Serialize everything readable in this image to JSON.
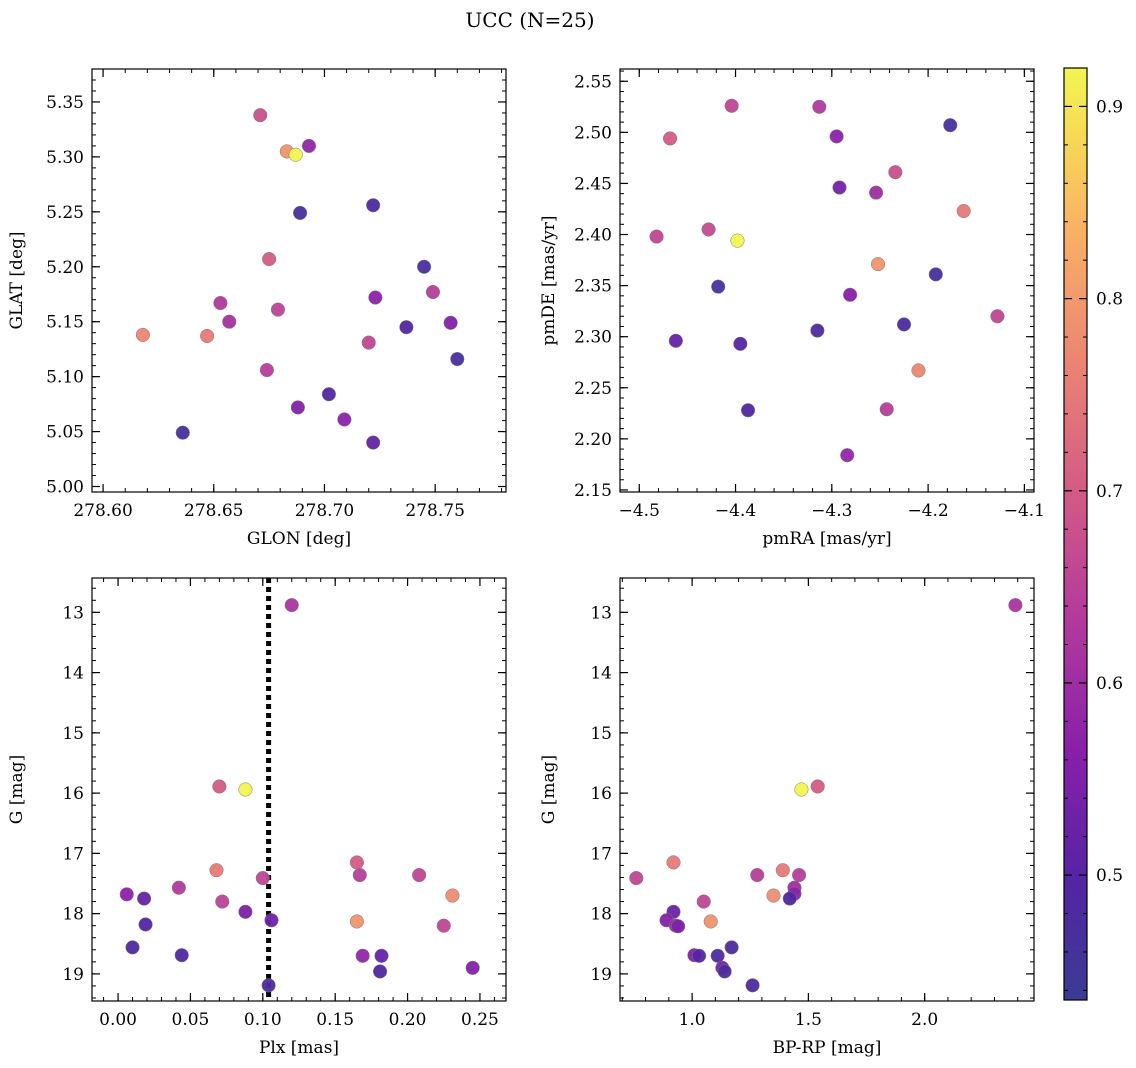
{
  "figure": {
    "title": "UCC (N=25)"
  },
  "colormap": {
    "name": "plasma",
    "range": [
      0.435,
      0.92
    ],
    "ticks": [
      0.5,
      0.6,
      0.7,
      0.8,
      0.9
    ],
    "tick_labels": [
      "0.5",
      "0.6",
      "0.7",
      "0.8",
      "0.9"
    ]
  },
  "chart_data": [
    {
      "type": "scatter",
      "id": "spatial",
      "xlabel": "GLON [deg]",
      "ylabel": "GLAT [deg]",
      "xlim": [
        278.595,
        278.782
      ],
      "ylim": [
        4.995,
        5.38
      ],
      "xticks": [
        278.6,
        278.65,
        278.7,
        278.75
      ],
      "xtick_labels": [
        "278.60",
        "278.65",
        "278.70",
        "278.75"
      ],
      "yticks": [
        5.0,
        5.05,
        5.1,
        5.15,
        5.2,
        5.25,
        5.3,
        5.35
      ],
      "ytick_labels": [
        "5.00",
        "5.05",
        "5.10",
        "5.15",
        "5.20",
        "5.25",
        "5.30",
        "5.35"
      ],
      "points": [
        {
          "x": 278.671,
          "y": 5.338,
          "c": 0.68
        },
        {
          "x": 278.683,
          "y": 5.305,
          "c": 0.79
        },
        {
          "x": 278.687,
          "y": 5.302,
          "c": 0.92
        },
        {
          "x": 278.693,
          "y": 5.31,
          "c": 0.58
        },
        {
          "x": 278.689,
          "y": 5.249,
          "c": 0.47
        },
        {
          "x": 278.722,
          "y": 5.256,
          "c": 0.48
        },
        {
          "x": 278.675,
          "y": 5.207,
          "c": 0.7
        },
        {
          "x": 278.745,
          "y": 5.2,
          "c": 0.47
        },
        {
          "x": 278.653,
          "y": 5.167,
          "c": 0.63
        },
        {
          "x": 278.749,
          "y": 5.177,
          "c": 0.64
        },
        {
          "x": 278.679,
          "y": 5.161,
          "c": 0.65
        },
        {
          "x": 278.723,
          "y": 5.172,
          "c": 0.57
        },
        {
          "x": 278.657,
          "y": 5.15,
          "c": 0.61
        },
        {
          "x": 278.618,
          "y": 5.138,
          "c": 0.77
        },
        {
          "x": 278.647,
          "y": 5.137,
          "c": 0.75
        },
        {
          "x": 278.737,
          "y": 5.145,
          "c": 0.49
        },
        {
          "x": 278.757,
          "y": 5.149,
          "c": 0.56
        },
        {
          "x": 278.72,
          "y": 5.131,
          "c": 0.66
        },
        {
          "x": 278.76,
          "y": 5.116,
          "c": 0.47
        },
        {
          "x": 278.674,
          "y": 5.106,
          "c": 0.64
        },
        {
          "x": 278.702,
          "y": 5.084,
          "c": 0.49
        },
        {
          "x": 278.688,
          "y": 5.072,
          "c": 0.56
        },
        {
          "x": 278.709,
          "y": 5.061,
          "c": 0.57
        },
        {
          "x": 278.722,
          "y": 5.04,
          "c": 0.52
        },
        {
          "x": 278.636,
          "y": 5.049,
          "c": 0.47
        }
      ]
    },
    {
      "type": "scatter",
      "id": "proper-motion",
      "xlabel": "pmRA [mas/yr]",
      "ylabel": "pmDE [mas/yr]",
      "xlim": [
        -4.52,
        -4.09
      ],
      "ylim": [
        2.148,
        2.562
      ],
      "xticks": [
        -4.5,
        -4.4,
        -4.3,
        -4.2,
        -4.1
      ],
      "xtick_labels": [
        "−4.5",
        "−4.4",
        "−4.3",
        "−4.2",
        "−4.1"
      ],
      "yticks": [
        2.15,
        2.2,
        2.25,
        2.3,
        2.35,
        2.4,
        2.45,
        2.5,
        2.55
      ],
      "ytick_labels": [
        "2.15",
        "2.20",
        "2.25",
        "2.30",
        "2.35",
        "2.40",
        "2.45",
        "2.50",
        "2.55"
      ],
      "points": [
        {
          "x": -4.404,
          "y": 2.526,
          "c": 0.66
        },
        {
          "x": -4.313,
          "y": 2.525,
          "c": 0.63
        },
        {
          "x": -4.468,
          "y": 2.494,
          "c": 0.7
        },
        {
          "x": -4.295,
          "y": 2.496,
          "c": 0.57
        },
        {
          "x": -4.177,
          "y": 2.507,
          "c": 0.47
        },
        {
          "x": -4.234,
          "y": 2.461,
          "c": 0.68
        },
        {
          "x": -4.292,
          "y": 2.446,
          "c": 0.54
        },
        {
          "x": -4.254,
          "y": 2.441,
          "c": 0.6
        },
        {
          "x": -4.163,
          "y": 2.423,
          "c": 0.75
        },
        {
          "x": -4.482,
          "y": 2.398,
          "c": 0.66
        },
        {
          "x": -4.428,
          "y": 2.405,
          "c": 0.67
        },
        {
          "x": -4.398,
          "y": 2.394,
          "c": 0.92
        },
        {
          "x": -4.252,
          "y": 2.371,
          "c": 0.79
        },
        {
          "x": -4.192,
          "y": 2.361,
          "c": 0.47
        },
        {
          "x": -4.418,
          "y": 2.349,
          "c": 0.47
        },
        {
          "x": -4.281,
          "y": 2.341,
          "c": 0.56
        },
        {
          "x": -4.225,
          "y": 2.312,
          "c": 0.48
        },
        {
          "x": -4.128,
          "y": 2.32,
          "c": 0.66
        },
        {
          "x": -4.315,
          "y": 2.306,
          "c": 0.48
        },
        {
          "x": -4.462,
          "y": 2.296,
          "c": 0.52
        },
        {
          "x": -4.395,
          "y": 2.293,
          "c": 0.5
        },
        {
          "x": -4.21,
          "y": 2.267,
          "c": 0.77
        },
        {
          "x": -4.387,
          "y": 2.228,
          "c": 0.49
        },
        {
          "x": -4.243,
          "y": 2.229,
          "c": 0.64
        },
        {
          "x": -4.284,
          "y": 2.184,
          "c": 0.58
        }
      ]
    },
    {
      "type": "scatter",
      "id": "plx-mag",
      "xlabel": "Plx [mas]",
      "ylabel": "G [mag]",
      "xlim": [
        -0.018,
        0.268
      ],
      "ylim": [
        19.45,
        12.43
      ],
      "xticks": [
        0.0,
        0.05,
        0.1,
        0.15,
        0.2,
        0.25
      ],
      "xtick_labels": [
        "0.00",
        "0.05",
        "0.10",
        "0.15",
        "0.20",
        "0.25"
      ],
      "yticks": [
        13,
        14,
        15,
        16,
        17,
        18,
        19
      ],
      "ytick_labels": [
        "13",
        "14",
        "15",
        "16",
        "17",
        "18",
        "19"
      ],
      "vline": 0.104,
      "points": [
        {
          "x": 0.12,
          "y": 12.88,
          "c": 0.62
        },
        {
          "x": 0.07,
          "y": 15.89,
          "c": 0.7
        },
        {
          "x": 0.088,
          "y": 15.94,
          "c": 0.92
        },
        {
          "x": 0.068,
          "y": 17.28,
          "c": 0.75
        },
        {
          "x": 0.1,
          "y": 17.41,
          "c": 0.66
        },
        {
          "x": 0.165,
          "y": 17.15,
          "c": 0.7
        },
        {
          "x": 0.167,
          "y": 17.36,
          "c": 0.64
        },
        {
          "x": 0.208,
          "y": 17.36,
          "c": 0.66
        },
        {
          "x": 0.231,
          "y": 17.7,
          "c": 0.78
        },
        {
          "x": 0.042,
          "y": 17.57,
          "c": 0.63
        },
        {
          "x": 0.006,
          "y": 17.68,
          "c": 0.57
        },
        {
          "x": 0.018,
          "y": 17.75,
          "c": 0.52
        },
        {
          "x": 0.072,
          "y": 17.8,
          "c": 0.65
        },
        {
          "x": 0.088,
          "y": 17.97,
          "c": 0.55
        },
        {
          "x": 0.106,
          "y": 18.11,
          "c": 0.53
        },
        {
          "x": 0.165,
          "y": 18.13,
          "c": 0.79
        },
        {
          "x": 0.019,
          "y": 18.18,
          "c": 0.49
        },
        {
          "x": 0.225,
          "y": 18.2,
          "c": 0.66
        },
        {
          "x": 0.01,
          "y": 18.56,
          "c": 0.48
        },
        {
          "x": 0.044,
          "y": 18.69,
          "c": 0.49
        },
        {
          "x": 0.169,
          "y": 18.7,
          "c": 0.58
        },
        {
          "x": 0.182,
          "y": 18.7,
          "c": 0.52
        },
        {
          "x": 0.245,
          "y": 18.9,
          "c": 0.56
        },
        {
          "x": 0.181,
          "y": 18.96,
          "c": 0.49
        },
        {
          "x": 0.104,
          "y": 19.19,
          "c": 0.48
        }
      ]
    },
    {
      "type": "scatter",
      "id": "cmd",
      "xlabel": "BP-RP [mag]",
      "ylabel": "G [mag]",
      "xlim": [
        0.69,
        2.47
      ],
      "ylim": [
        19.45,
        12.43
      ],
      "xticks": [
        1.0,
        1.5,
        2.0
      ],
      "xtick_labels": [
        "1.0",
        "1.5",
        "2.0"
      ],
      "yticks": [
        13,
        14,
        15,
        16,
        17,
        18,
        19
      ],
      "ytick_labels": [
        "13",
        "14",
        "15",
        "16",
        "17",
        "18",
        "19"
      ],
      "points": [
        {
          "x": 2.39,
          "y": 12.88,
          "c": 0.62
        },
        {
          "x": 1.54,
          "y": 15.89,
          "c": 0.7
        },
        {
          "x": 1.47,
          "y": 15.94,
          "c": 0.92
        },
        {
          "x": 0.92,
          "y": 17.15,
          "c": 0.75
        },
        {
          "x": 0.76,
          "y": 17.41,
          "c": 0.66
        },
        {
          "x": 1.28,
          "y": 17.36,
          "c": 0.64
        },
        {
          "x": 1.39,
          "y": 17.28,
          "c": 0.75
        },
        {
          "x": 1.46,
          "y": 17.36,
          "c": 0.64
        },
        {
          "x": 1.35,
          "y": 17.7,
          "c": 0.78
        },
        {
          "x": 1.44,
          "y": 17.57,
          "c": 0.6
        },
        {
          "x": 1.44,
          "y": 17.67,
          "c": 0.57
        },
        {
          "x": 1.42,
          "y": 17.75,
          "c": 0.49
        },
        {
          "x": 1.05,
          "y": 17.8,
          "c": 0.66
        },
        {
          "x": 0.92,
          "y": 17.97,
          "c": 0.53
        },
        {
          "x": 0.89,
          "y": 18.11,
          "c": 0.56
        },
        {
          "x": 1.08,
          "y": 18.13,
          "c": 0.79
        },
        {
          "x": 0.93,
          "y": 18.2,
          "c": 0.6
        },
        {
          "x": 0.94,
          "y": 18.21,
          "c": 0.55
        },
        {
          "x": 1.17,
          "y": 18.56,
          "c": 0.48
        },
        {
          "x": 1.01,
          "y": 18.69,
          "c": 0.55
        },
        {
          "x": 1.03,
          "y": 18.7,
          "c": 0.5
        },
        {
          "x": 1.11,
          "y": 18.7,
          "c": 0.48
        },
        {
          "x": 1.13,
          "y": 18.9,
          "c": 0.54
        },
        {
          "x": 1.14,
          "y": 18.96,
          "c": 0.48
        },
        {
          "x": 1.26,
          "y": 19.19,
          "c": 0.48
        }
      ]
    }
  ]
}
